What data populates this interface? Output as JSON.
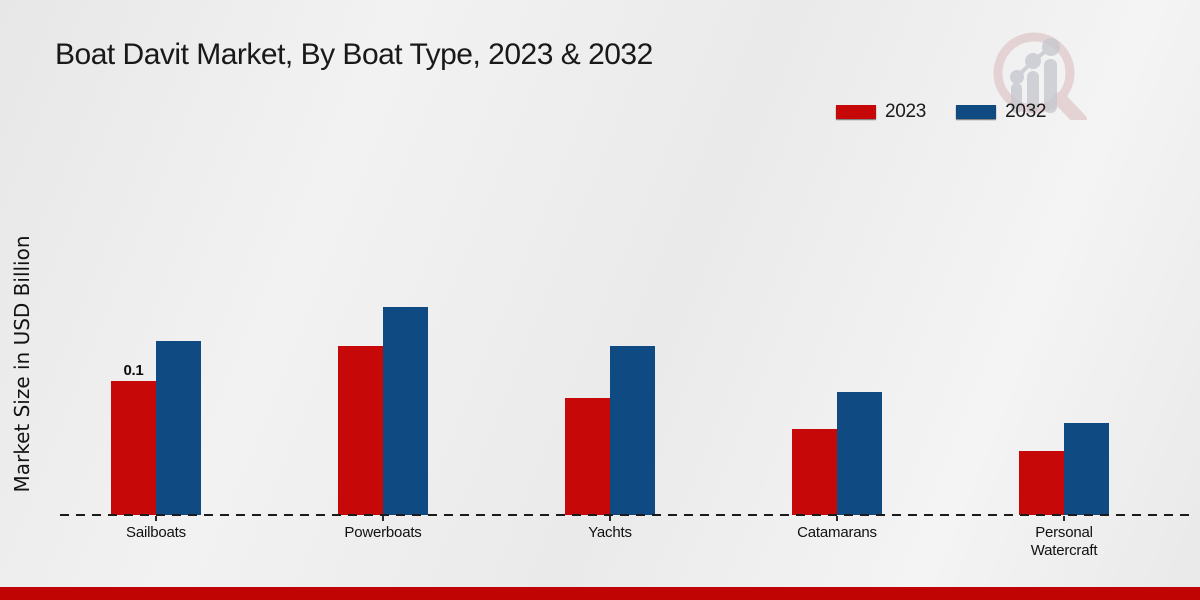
{
  "header": {
    "title": "Boat Davit Market, By Boat Type, 2023 & 2032"
  },
  "colors": {
    "series_2023": "#c60808",
    "series_2032": "#0f4a82",
    "bottom_strip": "#c00404",
    "text": "#1a1a1a",
    "baseline": "#1b1b1b"
  },
  "watermark": {
    "name": "market-research-logo",
    "ring_color": "#d9b9bc",
    "bars_color": "#c7c9cf"
  },
  "chart_data": {
    "type": "bar",
    "title": "Boat Davit Market, By Boat Type, 2023 & 2032",
    "xlabel": "",
    "ylabel": "Market Size in USD Billion",
    "categories": [
      "Sailboats",
      "Powerboats",
      "Yachts",
      "Catamarans",
      "Personal Watercraft"
    ],
    "series": [
      {
        "name": "2023",
        "color": "#c60808",
        "values": [
          0.1,
          0.126,
          0.087,
          0.064,
          0.048
        ]
      },
      {
        "name": "2032",
        "color": "#0f4a82",
        "values": [
          0.13,
          0.155,
          0.126,
          0.092,
          0.069
        ]
      }
    ],
    "annotations": [
      {
        "category_index": 0,
        "series_index": 0,
        "text": "0.1"
      }
    ],
    "ylim": [
      0,
      0.16
    ],
    "y_axis_ticks_visible": false,
    "grid": false,
    "legend_position": "top-right",
    "baseline_style": "dashed"
  }
}
